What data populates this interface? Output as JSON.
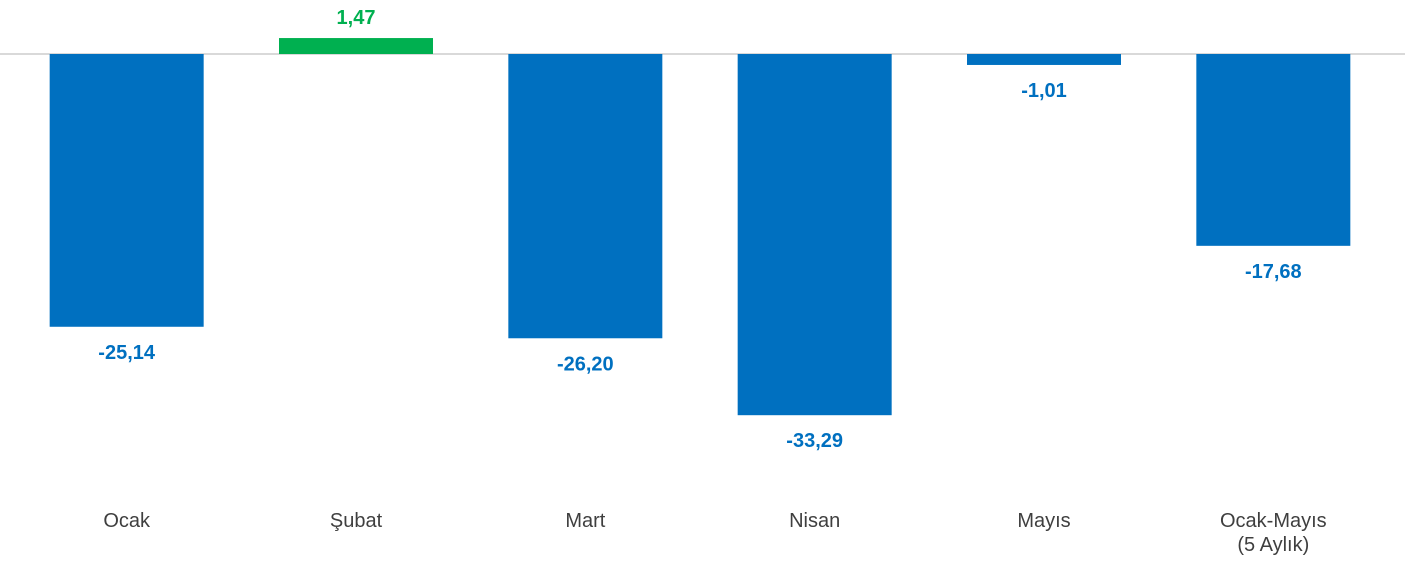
{
  "chart_data": {
    "type": "bar",
    "title": "",
    "xlabel": "",
    "ylabel": "",
    "categories": [
      [
        "Ocak"
      ],
      [
        "Şubat"
      ],
      [
        "Mart"
      ],
      [
        "Nisan"
      ],
      [
        "Mayıs"
      ],
      [
        "Ocak-Mayıs",
        "(5 Aylık)"
      ]
    ],
    "values": [
      -25.14,
      1.47,
      -26.2,
      -33.29,
      -1.01,
      -17.68
    ],
    "value_labels": [
      "-25,14",
      "1,47",
      "-26,20",
      "-33,29",
      "-1,01",
      "-17,68"
    ],
    "ylim": [
      -38,
      4
    ],
    "grid": false,
    "legend": "none",
    "colors": {
      "negative": "#0070C0",
      "positive": "#00B050",
      "baseline": "#D9D9D9",
      "category_text": "#3F3F3F"
    }
  }
}
